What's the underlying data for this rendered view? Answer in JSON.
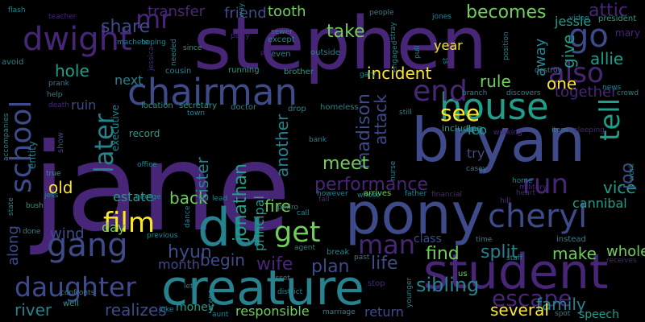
{
  "palette": {
    "background": "#000000",
    "purple": "#482677",
    "indigo": "#3e4a89",
    "blue": "#31688e",
    "teal": "#26828e",
    "green": "#1f9e89",
    "lightgreen": "#35b779",
    "lime": "#6ece58",
    "yellow": "#fde725"
  },
  "words": [
    {
      "id": "jane",
      "text": "jane",
      "color": "purple"
    },
    {
      "id": "stephen",
      "text": "stephen",
      "color": "purple"
    },
    {
      "id": "pony",
      "text": "pony",
      "color": "indigo"
    },
    {
      "id": "bryan",
      "text": "bryan",
      "color": "indigo"
    },
    {
      "id": "creature",
      "text": "creature",
      "color": "teal"
    },
    {
      "id": "du",
      "text": "du",
      "color": "teal"
    },
    {
      "id": "student",
      "text": "student",
      "color": "purple"
    },
    {
      "id": "house",
      "text": "house",
      "color": "green"
    },
    {
      "id": "chairman",
      "text": "chairman",
      "color": "indigo"
    },
    {
      "id": "dwight",
      "text": "dwight",
      "color": "purple"
    },
    {
      "id": "gang",
      "text": "gang",
      "color": "indigo"
    },
    {
      "id": "cheryl",
      "text": "cheryl",
      "color": "indigo"
    },
    {
      "id": "end",
      "text": "end",
      "color": "purple"
    },
    {
      "id": "school",
      "text": "school",
      "color": "indigo"
    },
    {
      "id": "daughter",
      "text": "daughter",
      "color": "indigo"
    },
    {
      "id": "get",
      "text": "get",
      "color": "lime"
    },
    {
      "id": "film",
      "text": "film",
      "color": "yellow"
    },
    {
      "id": "man",
      "text": "man",
      "color": "purple"
    },
    {
      "id": "run",
      "text": "run",
      "color": "purple"
    },
    {
      "id": "go",
      "text": "go",
      "color": "indigo"
    },
    {
      "id": "also",
      "text": "also",
      "color": "purple"
    },
    {
      "id": "see",
      "text": "see",
      "color": "yellow"
    },
    {
      "id": "tell",
      "text": "tell",
      "color": "green"
    },
    {
      "id": "later",
      "text": "later",
      "color": "teal"
    },
    {
      "id": "mr",
      "text": "mr",
      "color": "purple"
    },
    {
      "id": "escape",
      "text": "escape",
      "color": "purple"
    },
    {
      "id": "attic",
      "text": "attic",
      "color": "purple"
    },
    {
      "id": "jonathan",
      "text": "jonathan",
      "color": "green"
    },
    {
      "id": "hyun",
      "text": "hyun",
      "color": "indigo"
    },
    {
      "id": "wife",
      "text": "wife",
      "color": "purple"
    },
    {
      "id": "madison",
      "text": "madison",
      "color": "indigo"
    },
    {
      "id": "meet",
      "text": "meet",
      "color": "lime"
    },
    {
      "id": "performance",
      "text": "performance",
      "color": "purple"
    },
    {
      "id": "family",
      "text": "family",
      "color": "teal"
    },
    {
      "id": "allie",
      "text": "allie",
      "color": "green"
    },
    {
      "id": "rule",
      "text": "rule",
      "color": "lime"
    },
    {
      "id": "one",
      "text": "one",
      "color": "yellow"
    },
    {
      "id": "find",
      "text": "find",
      "color": "lime"
    },
    {
      "id": "split",
      "text": "split",
      "color": "teal"
    },
    {
      "id": "life",
      "text": "life",
      "color": "indigo"
    },
    {
      "id": "make",
      "text": "make",
      "color": "lime"
    },
    {
      "id": "plan",
      "text": "plan",
      "color": "indigo"
    },
    {
      "id": "sibling",
      "text": "sibling",
      "color": "teal"
    },
    {
      "id": "back",
      "text": "back",
      "color": "lime"
    },
    {
      "id": "fire",
      "text": "fire",
      "color": "lime"
    },
    {
      "id": "begin",
      "text": "begin",
      "color": "indigo"
    },
    {
      "id": "river",
      "text": "river",
      "color": "teal"
    },
    {
      "id": "sister",
      "text": "sister",
      "color": "teal"
    },
    {
      "id": "becomes",
      "text": "becomes",
      "color": "lime"
    },
    {
      "id": "take",
      "text": "take",
      "color": "lime"
    },
    {
      "id": "share",
      "text": "share",
      "color": "indigo"
    },
    {
      "id": "transfer",
      "text": "transfer",
      "color": "purple"
    },
    {
      "id": "friend",
      "text": "friend",
      "color": "indigo"
    },
    {
      "id": "tooth",
      "text": "tooth",
      "color": "lime"
    },
    {
      "id": "hole",
      "text": "hole",
      "color": "green"
    },
    {
      "id": "old",
      "text": "old",
      "color": "yellow"
    },
    {
      "id": "vice",
      "text": "vice",
      "color": "green"
    },
    {
      "id": "joo",
      "text": "joo",
      "color": "indigo"
    },
    {
      "id": "give",
      "text": "give",
      "color": "green"
    },
    {
      "id": "away",
      "text": "away",
      "color": "teal"
    },
    {
      "id": "together",
      "text": "together",
      "color": "purple"
    },
    {
      "id": "whole",
      "text": "whole",
      "color": "lime"
    },
    {
      "id": "realizes",
      "text": "realizes",
      "color": "indigo"
    },
    {
      "id": "several",
      "text": "several",
      "color": "yellow"
    },
    {
      "id": "return",
      "text": "return",
      "color": "indigo"
    },
    {
      "id": "incident",
      "text": "incident",
      "color": "yellow"
    },
    {
      "id": "another",
      "text": "another",
      "color": "teal"
    },
    {
      "id": "attack",
      "text": "attack",
      "color": "indigo"
    },
    {
      "id": "along",
      "text": "along",
      "color": "indigo"
    },
    {
      "id": "wind",
      "text": "wind",
      "color": "indigo"
    },
    {
      "id": "responsible",
      "text": "responsible",
      "color": "lime"
    },
    {
      "id": "estate",
      "text": "estate",
      "color": "green"
    },
    {
      "id": "principal",
      "text": "principal",
      "color": "green"
    },
    {
      "id": "cannibal",
      "text": "cannibal",
      "color": "green"
    },
    {
      "id": "year",
      "text": "year",
      "color": "yellow"
    },
    {
      "id": "jessie",
      "text": "jessie",
      "color": "green"
    },
    {
      "id": "next",
      "text": "next",
      "color": "teal"
    },
    {
      "id": "day",
      "text": "day",
      "color": "lime"
    },
    {
      "id": "month",
      "text": "month",
      "color": "indigo"
    },
    {
      "id": "money",
      "text": "money",
      "color": "green"
    },
    {
      "id": "speech",
      "text": "speech",
      "color": "green"
    },
    {
      "id": "try",
      "text": "try",
      "color": "indigo"
    },
    {
      "id": "leo",
      "text": "leo",
      "color": "green"
    },
    {
      "id": "class",
      "text": "class",
      "color": "indigo"
    },
    {
      "id": "entity",
      "text": "entity",
      "color": "teal"
    },
    {
      "id": "executive",
      "text": "executive",
      "color": "teal"
    },
    {
      "id": "record",
      "text": "record",
      "color": "green"
    },
    {
      "id": "location",
      "text": "location",
      "color": "green"
    },
    {
      "id": "secretary",
      "text": "secretary",
      "color": "green"
    },
    {
      "id": "cousin",
      "text": "cousin",
      "color": "teal"
    },
    {
      "id": "running",
      "text": "running",
      "color": "green"
    },
    {
      "id": "brother",
      "text": "brother",
      "color": "green"
    },
    {
      "id": "teacher",
      "text": "teacher",
      "color": "purple"
    },
    {
      "id": "machete",
      "text": "machete",
      "color": "teal"
    },
    {
      "id": "hoping",
      "text": "hoping",
      "color": "teal"
    },
    {
      "id": "needed",
      "text": "needed",
      "color": "teal"
    },
    {
      "id": "party",
      "text": "party",
      "color": "purple"
    },
    {
      "id": "sewer",
      "text": "sewer",
      "color": "teal"
    },
    {
      "id": "except",
      "text": "except",
      "color": "teal"
    },
    {
      "id": "even",
      "text": "even",
      "color": "teal"
    },
    {
      "id": "outside",
      "text": "outside",
      "color": "teal"
    },
    {
      "id": "people",
      "text": "people",
      "color": "teal"
    },
    {
      "id": "jones",
      "text": "jones",
      "color": "teal"
    },
    {
      "id": "mary",
      "text": "mary",
      "color": "purple"
    },
    {
      "id": "president",
      "text": "president",
      "color": "green"
    },
    {
      "id": "video",
      "text": "video",
      "color": "teal"
    },
    {
      "id": "flash",
      "text": "flash",
      "color": "teal"
    },
    {
      "id": "way",
      "text": "way",
      "color": "teal"
    },
    {
      "id": "avoid",
      "text": "avoid",
      "color": "teal"
    },
    {
      "id": "prank",
      "text": "prank",
      "color": "teal"
    },
    {
      "id": "help",
      "text": "help",
      "color": "teal"
    },
    {
      "id": "death",
      "text": "death",
      "color": "purple"
    },
    {
      "id": "ruin",
      "text": "ruin",
      "color": "indigo"
    },
    {
      "id": "show",
      "text": "show",
      "color": "indigo"
    },
    {
      "id": "true",
      "text": "true",
      "color": "green"
    },
    {
      "id": "jess",
      "text": "jess",
      "color": "teal"
    },
    {
      "id": "bush",
      "text": "bush",
      "color": "green"
    },
    {
      "id": "done",
      "text": "done",
      "color": "teal"
    },
    {
      "id": "state",
      "text": "state",
      "color": "teal"
    },
    {
      "id": "well",
      "text": "well",
      "color": "green"
    },
    {
      "id": "confronts",
      "text": "confronts",
      "color": "teal"
    },
    {
      "id": "accompanies",
      "text": "accompanies",
      "color": "teal"
    },
    {
      "id": "jessica",
      "text": "jessica",
      "color": "purple"
    },
    {
      "id": "since",
      "text": "since",
      "color": "green"
    },
    {
      "id": "gary",
      "text": "gary",
      "color": "teal"
    },
    {
      "id": "destroy",
      "text": "destroy",
      "color": "teal"
    },
    {
      "id": "branch",
      "text": "branch",
      "color": "teal"
    },
    {
      "id": "discovers",
      "text": "discovers",
      "color": "teal"
    },
    {
      "id": "news",
      "text": "news",
      "color": "teal"
    },
    {
      "id": "crowd",
      "text": "crowd",
      "color": "teal"
    },
    {
      "id": "doctor",
      "text": "doctor",
      "color": "teal"
    },
    {
      "id": "drop",
      "text": "drop",
      "color": "teal"
    },
    {
      "id": "homeless",
      "text": "homeless",
      "color": "teal"
    },
    {
      "id": "town",
      "text": "town",
      "color": "teal"
    },
    {
      "id": "including",
      "text": "including",
      "color": "green"
    },
    {
      "id": "working",
      "text": "working",
      "color": "purple"
    },
    {
      "id": "item",
      "text": "item",
      "color": "teal"
    },
    {
      "id": "sleeping",
      "text": "sleeping",
      "color": "purple"
    },
    {
      "id": "home",
      "text": "home",
      "color": "teal"
    },
    {
      "id": "military",
      "text": "military",
      "color": "purple"
    },
    {
      "id": "heart",
      "text": "heart",
      "color": "purple"
    },
    {
      "id": "hill",
      "text": "hill",
      "color": "purple"
    },
    {
      "id": "work",
      "text": "work",
      "color": "teal"
    },
    {
      "id": "bank",
      "text": "bank",
      "color": "teal"
    },
    {
      "id": "casey",
      "text": "casey",
      "color": "teal"
    },
    {
      "id": "nurse",
      "text": "nurse",
      "color": "teal"
    },
    {
      "id": "whose",
      "text": "whose",
      "color": "teal"
    },
    {
      "id": "however",
      "text": "however",
      "color": "teal"
    },
    {
      "id": "office",
      "text": "office",
      "color": "teal"
    },
    {
      "id": "george",
      "text": "george",
      "color": "teal"
    },
    {
      "id": "pedro",
      "text": "pedro",
      "color": "teal"
    },
    {
      "id": "call",
      "text": "call",
      "color": "teal"
    },
    {
      "id": "fall",
      "text": "fall",
      "color": "purple"
    },
    {
      "id": "arrives",
      "text": "arrives",
      "color": "lime"
    },
    {
      "id": "father",
      "text": "father",
      "color": "teal"
    },
    {
      "id": "financial",
      "text": "financial",
      "color": "purple"
    },
    {
      "id": "instead",
      "text": "instead",
      "color": "teal"
    },
    {
      "id": "time",
      "text": "time",
      "color": "teal"
    },
    {
      "id": "staff",
      "text": "staff",
      "color": "teal"
    },
    {
      "id": "receives",
      "text": "receives",
      "color": "purple"
    },
    {
      "id": "previous",
      "text": "previous",
      "color": "teal"
    },
    {
      "id": "agent",
      "text": "agent",
      "color": "teal"
    },
    {
      "id": "break",
      "text": "break",
      "color": "teal"
    },
    {
      "id": "past",
      "text": "past",
      "color": "teal"
    },
    {
      "id": "let",
      "text": "let",
      "color": "teal"
    },
    {
      "id": "asset",
      "text": "asset",
      "color": "teal"
    },
    {
      "id": "district",
      "text": "district",
      "color": "teal"
    },
    {
      "id": "stop",
      "text": "stop",
      "color": "purple"
    },
    {
      "id": "younger",
      "text": "younger",
      "color": "teal"
    },
    {
      "id": "us",
      "text": "us",
      "color": "lime"
    },
    {
      "id": "scene",
      "text": "scene",
      "color": "teal"
    },
    {
      "id": "marriage",
      "text": "marriage",
      "color": "teal"
    },
    {
      "id": "aunt",
      "text": "aunt",
      "color": "teal"
    },
    {
      "id": "joke",
      "text": "joke",
      "color": "teal"
    },
    {
      "id": "spot",
      "text": "spot",
      "color": "teal"
    },
    {
      "id": "lead",
      "text": "lead",
      "color": "teal"
    },
    {
      "id": "dance",
      "text": "dance",
      "color": "teal"
    },
    {
      "id": "stray",
      "text": "stray",
      "color": "teal"
    },
    {
      "id": "engaged",
      "text": "engaged",
      "color": "teal"
    },
    {
      "id": "pull",
      "text": "pull",
      "color": "teal"
    },
    {
      "id": "st",
      "text": "st",
      "color": "teal"
    },
    {
      "id": "position",
      "text": "position",
      "color": "teal"
    },
    {
      "id": "still",
      "text": "still",
      "color": "teal"
    },
    {
      "id": "park",
      "text": "park",
      "color": "purple"
    }
  ]
}
